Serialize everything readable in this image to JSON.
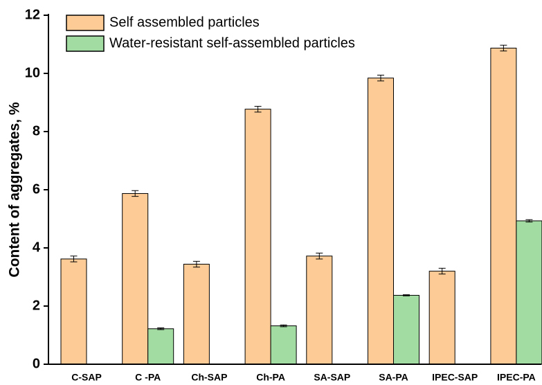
{
  "chart_data": {
    "type": "bar",
    "y_label": "Content of aggregates, %",
    "categories": [
      "C-SAP",
      "C -PA",
      "Ch-SAP",
      "Ch-PA",
      "SA-SAP",
      "SA-PA",
      "IPEC-SAP",
      "IPEC-PA"
    ],
    "series": [
      {
        "name": "Self assembled particles",
        "color": "#fdcc96",
        "values": [
          3.62,
          5.87,
          3.44,
          8.77,
          3.72,
          9.84,
          3.2,
          10.87
        ],
        "errors": [
          0.1,
          0.1,
          0.1,
          0.1,
          0.1,
          0.1,
          0.1,
          0.1
        ]
      },
      {
        "name": "Water-resistant self-assembled particles",
        "color": "#a3dca3",
        "values": [
          null,
          1.22,
          null,
          1.32,
          null,
          2.37,
          null,
          4.93
        ],
        "errors": [
          null,
          0.03,
          null,
          0.03,
          null,
          0.02,
          null,
          0.04
        ]
      }
    ],
    "ylim": [
      0,
      12
    ],
    "yticks": [
      0,
      2,
      4,
      6,
      8,
      10,
      12
    ],
    "legend": "top-left"
  }
}
